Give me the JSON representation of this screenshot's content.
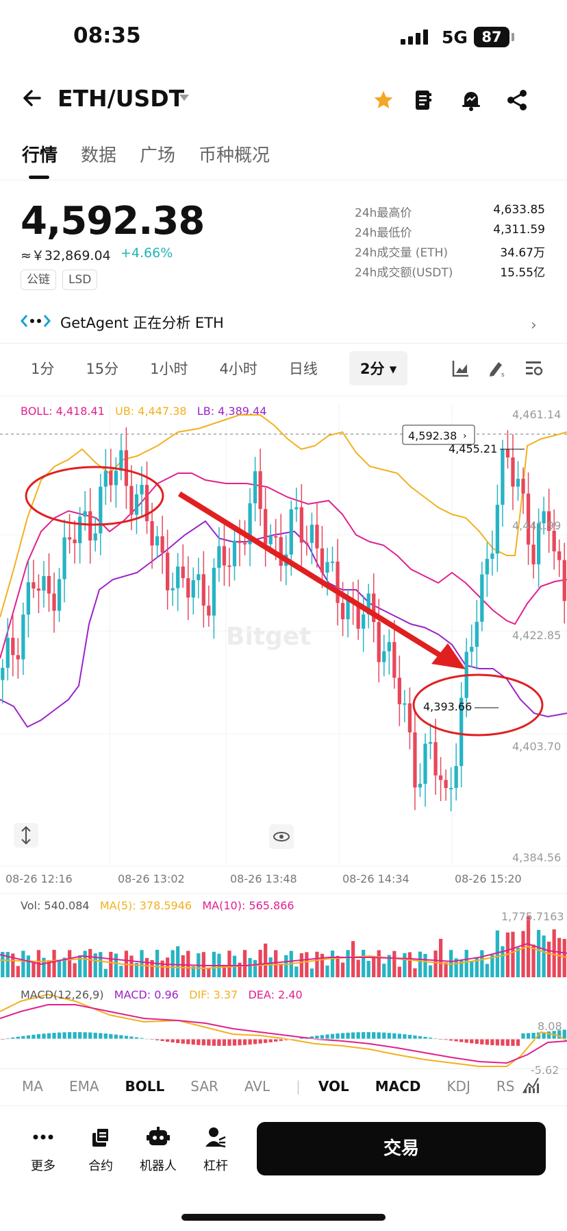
{
  "status": {
    "time": "08:35",
    "network": "5G",
    "battery": "87"
  },
  "header": {
    "title": "ETH/USDT"
  },
  "tabs": [
    "行情",
    "数据",
    "广场",
    "币种概况"
  ],
  "price": {
    "last": "4,592.38",
    "cny": "≈￥32,869.04",
    "change": "+4.66%",
    "tags": [
      "公链",
      "LSD"
    ]
  },
  "stats": [
    {
      "k": "24h最高价",
      "v": "4,633.85"
    },
    {
      "k": "24h最低价",
      "v": "4,311.59"
    },
    {
      "k": "24h成交量 (ETH)",
      "v": "34.67万"
    },
    {
      "k": "24h成交额(USDT)",
      "v": "15.55亿"
    }
  ],
  "agent": {
    "text": "GetAgent 正在分析 ETH"
  },
  "intervals": [
    "1分",
    "15分",
    "1小时",
    "4小时",
    "日线"
  ],
  "interval_active": "2分",
  "boll_legend": {
    "boll": "BOLL: 4,418.41",
    "ub": "UB: 4,447.38",
    "lb": "LB: 4,389.44"
  },
  "price_axis": [
    "4,461.14",
    "4,441.99",
    "4,422.85",
    "4,403.70",
    "4,384.56"
  ],
  "price_tag": "4,592.38",
  "high_marker": "4,455.21",
  "low_marker": "4,393.66",
  "time_axis": [
    "08-26 12:16",
    "08-26 13:02",
    "08-26 13:48",
    "08-26 14:34",
    "08-26 15:20"
  ],
  "vol_legend": {
    "vol": "Vol: 540.084",
    "ma5": "MA(5): 378.5946",
    "ma10": "MA(10): 565.866"
  },
  "vol_axis_max": "1,775.7163",
  "macd_legend": {
    "title": "MACD(12,26,9)",
    "macd": "MACD: 0.96",
    "dif": "DIF: 3.37",
    "dea": "DEA: 2.40"
  },
  "macd_axis": [
    "8.08",
    "-5.62"
  ],
  "indicator_tabs": [
    "MA",
    "EMA",
    "BOLL",
    "SAR",
    "AVL",
    "VOL",
    "MACD",
    "KDJ",
    "RS"
  ],
  "bottom_nav": [
    "更多",
    "合约",
    "机器人",
    "杠杆"
  ],
  "trade_label": "交易",
  "colors": {
    "up": "#26b4c4",
    "down": "#e8475b",
    "ub": "#f2b01e",
    "mid": "#e0208e",
    "lb": "#9a22c9",
    "annotation": "#e02020"
  },
  "chart_data": {
    "type": "candlestick",
    "price_min": 4384.56,
    "price_max": 4461.14,
    "candles_close_trend": [
      4415,
      4423,
      4432,
      4428,
      4436,
      4440,
      4443,
      4448,
      4452,
      4447,
      4440,
      4436,
      4429,
      4433,
      4429,
      4436,
      4439,
      4446,
      4441,
      4436,
      4443,
      4440,
      4432,
      4430,
      4425,
      4426,
      4420,
      4410,
      4400,
      4402,
      4394,
      4410,
      4425,
      4440,
      4452,
      4449,
      4436,
      4443,
      4430
    ]
  }
}
